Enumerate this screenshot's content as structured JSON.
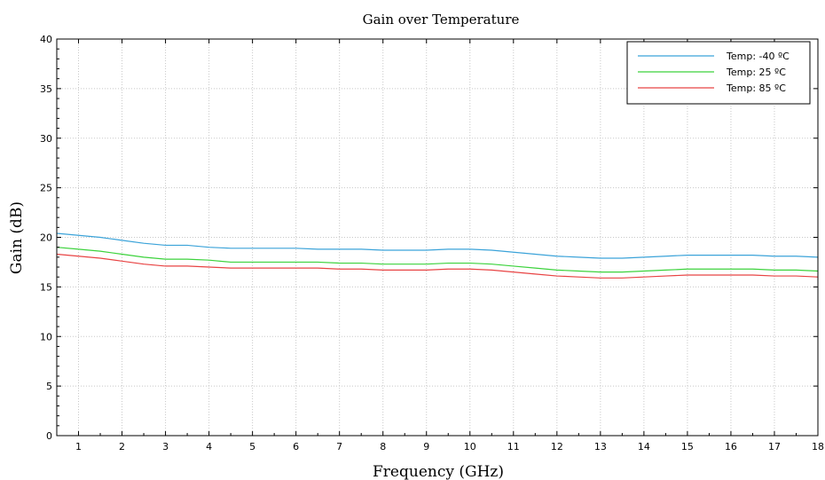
{
  "chart_data": {
    "type": "line",
    "title": "Gain over Temperature",
    "xlabel": "Frequency (GHz)",
    "ylabel": "Gain (dB)",
    "xlim": [
      0.5,
      18
    ],
    "ylim": [
      0,
      40
    ],
    "x_ticks": [
      1,
      2,
      3,
      4,
      5,
      6,
      7,
      8,
      9,
      10,
      11,
      12,
      13,
      14,
      15,
      16,
      17,
      18
    ],
    "y_ticks": [
      0,
      5,
      10,
      15,
      20,
      25,
      30,
      35,
      40
    ],
    "grid": true,
    "legend_position": "top-right",
    "x": [
      0.5,
      1,
      1.5,
      2,
      2.5,
      3,
      3.5,
      4,
      4.5,
      5,
      5.5,
      6,
      6.5,
      7,
      7.5,
      8,
      8.5,
      9,
      9.5,
      10,
      10.5,
      11,
      11.5,
      12,
      12.5,
      13,
      13.5,
      14,
      14.5,
      15,
      15.5,
      16,
      16.5,
      17,
      17.5,
      18
    ],
    "series": [
      {
        "name": "Temp: -40 ºC",
        "color": "#3ba3d9",
        "values": [
          20.4,
          20.2,
          20.0,
          19.7,
          19.4,
          19.2,
          19.2,
          19.0,
          18.9,
          18.9,
          18.9,
          18.9,
          18.8,
          18.8,
          18.8,
          18.7,
          18.7,
          18.7,
          18.8,
          18.8,
          18.7,
          18.5,
          18.3,
          18.1,
          18.0,
          17.9,
          17.9,
          18.0,
          18.1,
          18.2,
          18.2,
          18.2,
          18.2,
          18.1,
          18.1,
          18.0
        ]
      },
      {
        "name": "Temp: 25 ºC",
        "color": "#3cd23c",
        "values": [
          19.0,
          18.8,
          18.6,
          18.3,
          18.0,
          17.8,
          17.8,
          17.7,
          17.5,
          17.5,
          17.5,
          17.5,
          17.5,
          17.4,
          17.4,
          17.3,
          17.3,
          17.3,
          17.4,
          17.4,
          17.3,
          17.1,
          16.9,
          16.7,
          16.6,
          16.5,
          16.5,
          16.6,
          16.7,
          16.8,
          16.8,
          16.8,
          16.8,
          16.7,
          16.7,
          16.6
        ]
      },
      {
        "name": "Temp: 85 ºC",
        "color": "#e84343",
        "values": [
          18.3,
          18.1,
          17.9,
          17.6,
          17.3,
          17.1,
          17.1,
          17.0,
          16.9,
          16.9,
          16.9,
          16.9,
          16.9,
          16.8,
          16.8,
          16.7,
          16.7,
          16.7,
          16.8,
          16.8,
          16.7,
          16.5,
          16.3,
          16.1,
          16.0,
          15.9,
          15.9,
          16.0,
          16.1,
          16.2,
          16.2,
          16.2,
          16.2,
          16.1,
          16.1,
          16.0
        ]
      }
    ]
  }
}
